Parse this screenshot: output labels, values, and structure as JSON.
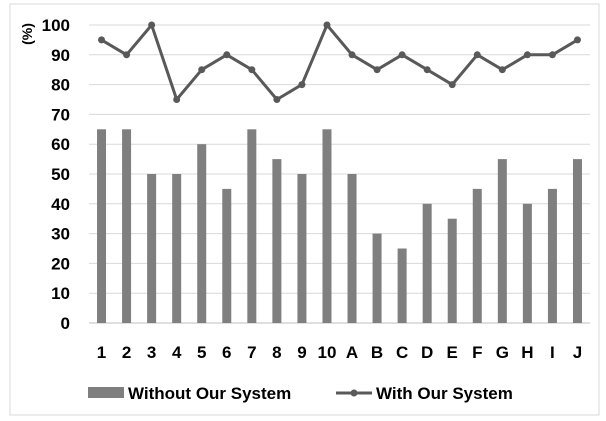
{
  "chart_data": {
    "type": "bar",
    "ylabel": "(%)",
    "ylim": [
      0,
      100
    ],
    "yticks": [
      0,
      10,
      20,
      30,
      40,
      50,
      60,
      70,
      80,
      90,
      100
    ],
    "grid": true,
    "legend_position": "bottom",
    "categories": [
      "1",
      "2",
      "3",
      "4",
      "5",
      "6",
      "7",
      "8",
      "9",
      "10",
      "A",
      "B",
      "C",
      "D",
      "E",
      "F",
      "G",
      "H",
      "I",
      "J"
    ],
    "series": [
      {
        "name": "Without Our System",
        "type": "bar",
        "color": "#7f7f7f",
        "values": [
          65,
          65,
          50,
          50,
          60,
          45,
          65,
          55,
          50,
          65,
          50,
          30,
          25,
          40,
          35,
          45,
          55,
          40,
          45,
          55
        ]
      },
      {
        "name": "With Our System",
        "type": "line",
        "color": "#595959",
        "values": [
          95,
          90,
          100,
          75,
          85,
          90,
          85,
          75,
          80,
          100,
          90,
          85,
          90,
          85,
          80,
          90,
          85,
          90,
          90,
          95
        ]
      }
    ]
  }
}
